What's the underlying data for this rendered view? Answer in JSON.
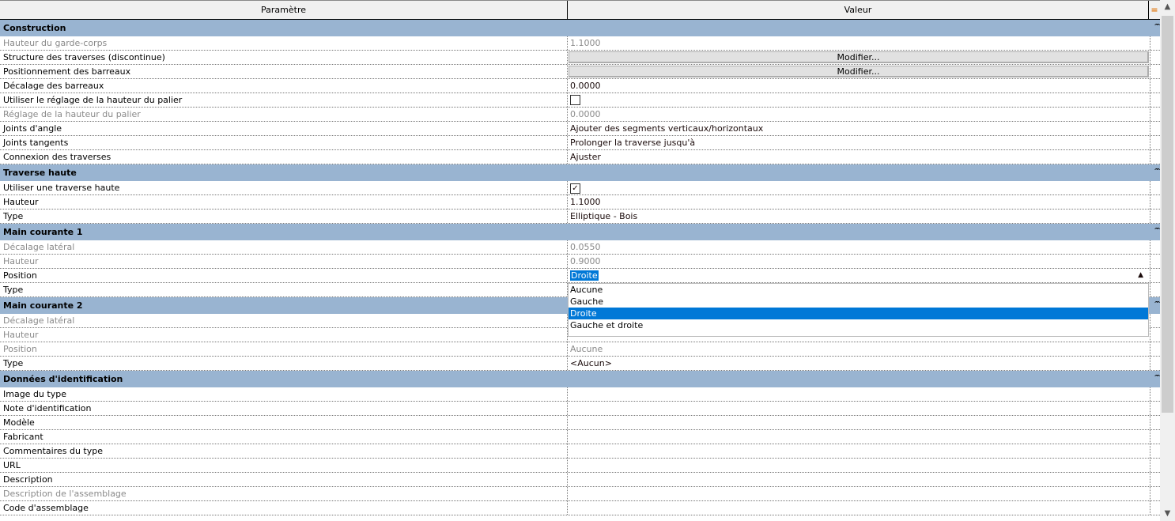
{
  "header": {
    "param": "Paramètre",
    "value": "Valeur",
    "equal_icon": "="
  },
  "groups": [
    {
      "title": "Construction",
      "rows": [
        {
          "param": "Hauteur du garde-corps",
          "value": "1.1000",
          "disabled": true
        },
        {
          "param": "Structure des traverses (discontinue)",
          "button": "Modifier..."
        },
        {
          "param": "Positionnement des barreaux",
          "button": "Modifier..."
        },
        {
          "param": "Décalage des barreaux",
          "value": "0.0000"
        },
        {
          "param": "Utiliser le réglage de la hauteur du palier",
          "checkbox": false
        },
        {
          "param": "Réglage de la hauteur du palier",
          "value": "0.0000",
          "disabled": true
        },
        {
          "param": "Joints d'angle",
          "value": "Ajouter des segments verticaux/horizontaux"
        },
        {
          "param": "Joints tangents",
          "value": "Prolonger la traverse jusqu'à"
        },
        {
          "param": "Connexion des traverses",
          "value": "Ajuster"
        }
      ]
    },
    {
      "title": "Traverse haute",
      "rows": [
        {
          "param": "Utiliser une traverse haute",
          "checkbox": true
        },
        {
          "param": "Hauteur",
          "value": "1.1000"
        },
        {
          "param": "Type",
          "value": "Elliptique - Bois"
        }
      ]
    },
    {
      "title": "Main courante 1",
      "rows": [
        {
          "param": "Décalage latéral",
          "value": "0.0550",
          "disabled": true
        },
        {
          "param": "Hauteur",
          "value": "0.9000",
          "disabled": true
        },
        {
          "param": "Position",
          "value": "Droite",
          "editing": true
        },
        {
          "param": "Type",
          "value": ""
        }
      ]
    },
    {
      "title": "Main courante 2",
      "rows": [
        {
          "param": "Décalage latéral",
          "value": "",
          "disabled": true
        },
        {
          "param": "Hauteur",
          "value": "",
          "disabled": true
        },
        {
          "param": "Position",
          "value": "Aucune",
          "disabled": true
        },
        {
          "param": "Type",
          "value": "<Aucun>"
        }
      ]
    },
    {
      "title": "Données d'identification",
      "rows": [
        {
          "param": "Image du type",
          "value": ""
        },
        {
          "param": "Note d'identification",
          "value": ""
        },
        {
          "param": "Modèle",
          "value": ""
        },
        {
          "param": "Fabricant",
          "value": ""
        },
        {
          "param": "Commentaires du type",
          "value": ""
        },
        {
          "param": "URL",
          "value": ""
        },
        {
          "param": "Description",
          "value": ""
        },
        {
          "param": "Description de l'assemblage",
          "value": "",
          "disabled": true
        },
        {
          "param": "Code d'assemblage",
          "value": ""
        }
      ]
    }
  ],
  "dropdown": {
    "options": [
      "Aucune",
      "Gauche",
      "Droite",
      "Gauche et droite"
    ],
    "selected": "Droite"
  },
  "colors": {
    "group_bg": "#99b4d1",
    "selection": "#0078d7"
  }
}
